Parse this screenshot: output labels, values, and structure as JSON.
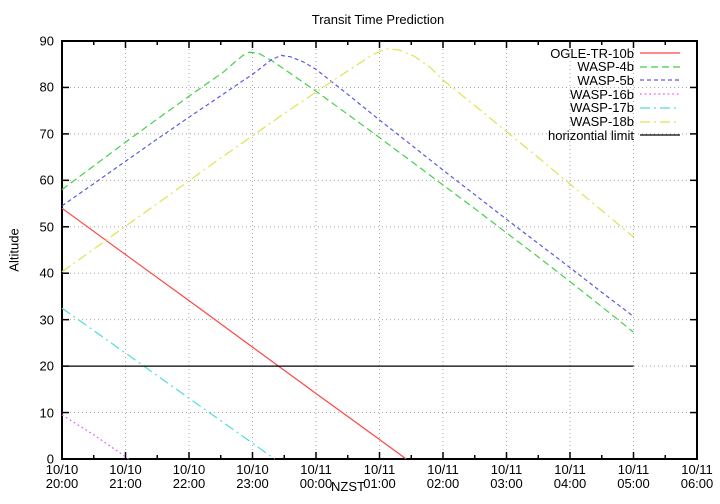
{
  "title": "Transit Time Prediction",
  "axes": {
    "xlabel": "NZST",
    "ylabel": "Altitude",
    "y_ticks": [
      0,
      10,
      20,
      30,
      40,
      50,
      60,
      70,
      80,
      90
    ],
    "x_ticks": [
      {
        "date": "10/10",
        "time": "20:00"
      },
      {
        "date": "10/10",
        "time": "21:00"
      },
      {
        "date": "10/10",
        "time": "22:00"
      },
      {
        "date": "10/10",
        "time": "23:00"
      },
      {
        "date": "10/11",
        "time": "00:00"
      },
      {
        "date": "10/11",
        "time": "01:00"
      },
      {
        "date": "10/11",
        "time": "02:00"
      },
      {
        "date": "10/11",
        "time": "03:00"
      },
      {
        "date": "10/11",
        "time": "04:00"
      },
      {
        "date": "10/11",
        "time": "05:00"
      },
      {
        "date": "10/11",
        "time": "06:00"
      }
    ]
  },
  "colors": {
    "background": "#ffffff",
    "border": "#000000",
    "grid": "#a8a8a8",
    "text": "#000000"
  },
  "chart_data": {
    "type": "line",
    "title": "Transit Time Prediction",
    "xlabel": "NZST",
    "ylabel": "Altitude",
    "ylim": [
      0,
      90
    ],
    "x_axis_note": "x in hours after 10/10 20:00 NZST; ticks every 1 h from 10/10 20:00 to 10/11 06:00",
    "xlim": [
      0,
      10
    ],
    "grid": true,
    "legend_position": "top-right-inside",
    "series": [
      {
        "name": "OGLE-TR-10b",
        "color": "#ff4545",
        "dash": "",
        "width": 1.2,
        "points": [
          [
            0,
            54
          ],
          [
            1,
            44
          ],
          [
            2,
            34.1
          ],
          [
            3,
            24.1
          ],
          [
            4,
            14.1
          ],
          [
            5,
            4.2
          ],
          [
            5.42,
            0
          ]
        ]
      },
      {
        "name": "WASP-4b",
        "color": "#46cf46",
        "dash": "7,4",
        "width": 1.2,
        "points": [
          [
            0,
            58
          ],
          [
            0.5,
            63.1
          ],
          [
            1,
            68.2
          ],
          [
            1.5,
            73.2
          ],
          [
            2,
            78.1
          ],
          [
            2.3,
            81
          ],
          [
            2.55,
            83.4
          ],
          [
            2.7,
            85.2
          ],
          [
            2.85,
            86.9
          ],
          [
            2.95,
            87.6
          ],
          [
            3.1,
            87.3
          ],
          [
            3.3,
            85.8
          ],
          [
            3.6,
            83
          ],
          [
            4,
            79.2
          ],
          [
            4.5,
            74.2
          ],
          [
            5,
            69.2
          ],
          [
            5.5,
            64.1
          ],
          [
            6,
            59
          ],
          [
            6.5,
            53.9
          ],
          [
            7,
            48.7
          ],
          [
            7.5,
            43.5
          ],
          [
            8,
            38.2
          ],
          [
            8.5,
            32.8
          ],
          [
            9,
            27.3
          ]
        ]
      },
      {
        "name": "WASP-5b",
        "color": "#5a5ae0",
        "dash": "4,3",
        "width": 1.2,
        "points": [
          [
            0,
            54.5
          ],
          [
            0.5,
            59.3
          ],
          [
            1,
            64.1
          ],
          [
            1.5,
            68.9
          ],
          [
            2,
            73.6
          ],
          [
            2.5,
            78.2
          ],
          [
            2.8,
            81
          ],
          [
            3,
            82.8
          ],
          [
            3.15,
            84.4
          ],
          [
            3.3,
            86
          ],
          [
            3.45,
            86.9
          ],
          [
            3.6,
            86.6
          ],
          [
            3.8,
            85.5
          ],
          [
            4,
            83.9
          ],
          [
            4.5,
            78.5
          ],
          [
            5,
            73
          ],
          [
            5.5,
            67.6
          ],
          [
            6,
            62.2
          ],
          [
            6.5,
            56.9
          ],
          [
            7,
            51.6
          ],
          [
            7.5,
            46.4
          ],
          [
            8,
            41.2
          ],
          [
            8.5,
            35.9
          ],
          [
            9,
            30.7
          ]
        ]
      },
      {
        "name": "WASP-16b",
        "color": "#ee5fee",
        "dash": "1.8,2.8",
        "width": 1.2,
        "points": [
          [
            0,
            9.5
          ],
          [
            0.5,
            5.2
          ],
          [
            1.05,
            0
          ]
        ]
      },
      {
        "name": "WASP-17b",
        "color": "#50dcdc",
        "dash": "10,4,2,4",
        "width": 1.2,
        "points": [
          [
            0,
            32.5
          ],
          [
            1,
            22.8
          ],
          [
            2,
            13.1
          ],
          [
            3,
            3.4
          ],
          [
            3.35,
            0
          ]
        ]
      },
      {
        "name": "WASP-18b",
        "color": "#e2e24e",
        "dash": "10,4,2,4",
        "width": 1.2,
        "points": [
          [
            0,
            40.3
          ],
          [
            0.5,
            45.2
          ],
          [
            1,
            50.1
          ],
          [
            1.5,
            55
          ],
          [
            2,
            59.9
          ],
          [
            2.5,
            64.8
          ],
          [
            3,
            69.6
          ],
          [
            3.5,
            74.4
          ],
          [
            4,
            79
          ],
          [
            4.35,
            82.2
          ],
          [
            4.65,
            84.9
          ],
          [
            4.9,
            87.1
          ],
          [
            5.1,
            88.3
          ],
          [
            5.3,
            88.1
          ],
          [
            5.55,
            86.7
          ],
          [
            5.8,
            84.3
          ],
          [
            6,
            81.6
          ],
          [
            6.5,
            76.1
          ],
          [
            7,
            70.5
          ],
          [
            7.5,
            64.9
          ],
          [
            8,
            59.2
          ],
          [
            8.5,
            53.5
          ],
          [
            9,
            47.8
          ]
        ]
      },
      {
        "name": "horizontial limit",
        "color": "#000000",
        "dash": "",
        "width": 1.3,
        "points": [
          [
            0,
            20
          ],
          [
            9,
            20
          ]
        ]
      }
    ]
  }
}
